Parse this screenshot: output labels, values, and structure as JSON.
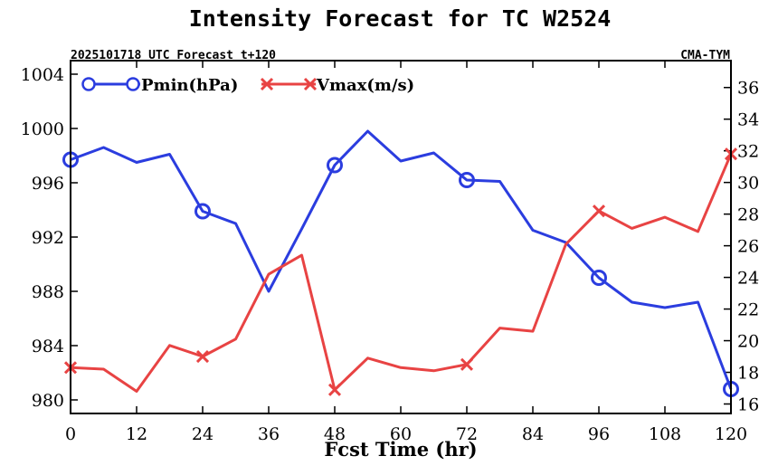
{
  "chart_data": {
    "type": "line",
    "title": "Intensity Forecast for TC W2524",
    "subtitle_left": "2025101718 UTC Forecast t+120",
    "subtitle_right": "CMA-TYM",
    "xlabel": "Fcst Time (hr)",
    "x": [
      0,
      6,
      12,
      18,
      24,
      30,
      36,
      42,
      48,
      54,
      60,
      66,
      72,
      78,
      84,
      90,
      96,
      102,
      108,
      114,
      120
    ],
    "xlim": [
      0,
      120
    ],
    "xticks": [
      0,
      12,
      24,
      36,
      48,
      60,
      72,
      84,
      96,
      108,
      120
    ],
    "left_axis": {
      "ylim": [
        979,
        1005
      ],
      "ticks": [
        980,
        984,
        988,
        992,
        996,
        1000,
        1004
      ]
    },
    "right_axis": {
      "ylim": [
        15.4,
        37.7
      ],
      "ticks": [
        16,
        18,
        20,
        22,
        24,
        26,
        28,
        30,
        32,
        34,
        36
      ]
    },
    "series": [
      {
        "name": "Pmin(hPa)",
        "axis": "left",
        "color": "#2b3ddf",
        "marker": "circle",
        "marker_x": [
          0,
          24,
          48,
          72,
          96,
          120
        ],
        "values": [
          997.7,
          998.6,
          997.5,
          998.1,
          993.9,
          993.0,
          988.0,
          992.6,
          997.3,
          999.8,
          997.6,
          998.2,
          996.2,
          996.1,
          992.5,
          991.6,
          989.0,
          987.2,
          986.8,
          987.2,
          980.8
        ]
      },
      {
        "name": "Vmax(m/s)",
        "axis": "right",
        "color": "#e84343",
        "marker": "x",
        "marker_x": [
          0,
          24,
          48,
          72,
          96,
          120
        ],
        "values": [
          18.3,
          18.2,
          16.8,
          19.7,
          19.0,
          20.1,
          24.2,
          25.4,
          16.9,
          18.9,
          18.3,
          18.1,
          18.5,
          20.8,
          20.6,
          26.1,
          28.2,
          27.1,
          27.8,
          26.9,
          31.8
        ]
      }
    ]
  }
}
